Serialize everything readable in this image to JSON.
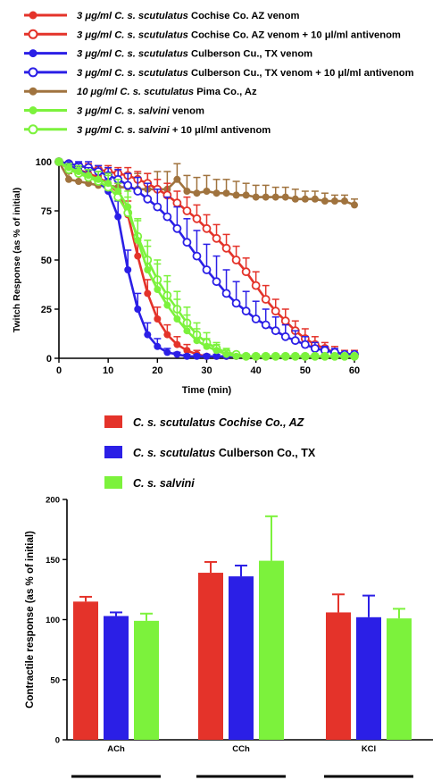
{
  "colors": {
    "cochise": "#e4332a",
    "culberson": "#2b1fe6",
    "salvini": "#7cf23c",
    "pima": "#a0733e",
    "axis": "#000000"
  },
  "chart_data": [
    {
      "type": "line",
      "xlabel": "Time (min)",
      "ylabel": "Twitch Response (as % of initial)",
      "xlim": [
        0,
        60
      ],
      "ylim": [
        0,
        100
      ],
      "xticks": [
        "0",
        "10",
        "20",
        "30",
        "40",
        "50",
        "60"
      ],
      "yticks": [
        "0",
        "25",
        "50",
        "75",
        "100"
      ],
      "legend": [
        {
          "prefix": "3 μg/ml ",
          "species": "C. s. scutulatus",
          "suffix": " Cochise Co. AZ venom",
          "color": "#e4332a",
          "marker": "filled"
        },
        {
          "prefix": "3 μg/ml ",
          "species": "C. s. scutulatus",
          "suffix": " Cochise Co. AZ venom + 10 μl/ml  antivenom",
          "color": "#e4332a",
          "marker": "open"
        },
        {
          "prefix": "3 μg/ml ",
          "species": "C. s. scutulatus",
          "suffix": " Culberson Cu., TX venom",
          "color": "#2b1fe6",
          "marker": "filled"
        },
        {
          "prefix": "3 μg/ml ",
          "species": "C. s. scutulatus",
          "suffix": " Culberson Cu., TX venom  + 10 μl/ml  antivenom",
          "color": "#2b1fe6",
          "marker": "open"
        },
        {
          "prefix": "10 μg/ml ",
          "species": "C. s. scutulatus",
          "suffix": " Pima Co., Az",
          "color": "#a0733e",
          "marker": "filled"
        },
        {
          "prefix": "3 μg/ml ",
          "species": "C. s. salvini",
          "suffix": " venom",
          "color": "#7cf23c",
          "marker": "filled"
        },
        {
          "prefix": "3 μg/ml ",
          "species": "C. s. salvini",
          "suffix": "  + 10 μl/ml  antivenom",
          "color": "#7cf23c",
          "marker": "open"
        }
      ],
      "x": [
        0,
        2,
        4,
        6,
        8,
        10,
        12,
        14,
        16,
        18,
        20,
        22,
        24,
        26,
        28,
        30,
        32,
        34,
        36,
        38,
        40,
        42,
        44,
        46,
        48,
        50,
        52,
        54,
        56,
        58,
        60
      ],
      "series": [
        {
          "color": "#e4332a",
          "marker": "filled",
          "values": [
            100,
            98,
            96,
            94,
            92,
            89,
            84,
            73,
            52,
            33,
            20,
            12,
            7,
            4,
            2,
            1,
            1,
            1,
            1,
            1,
            1,
            1,
            1,
            1,
            1,
            1,
            1,
            1,
            1,
            1,
            1
          ],
          "err": [
            0,
            2,
            2,
            3,
            3,
            4,
            5,
            7,
            8,
            7,
            6,
            5,
            4,
            3,
            2,
            1,
            1,
            1,
            1,
            1,
            1,
            1,
            1,
            1,
            1,
            1,
            1,
            1,
            1,
            1,
            1
          ]
        },
        {
          "color": "#e4332a",
          "marker": "open",
          "values": [
            100,
            99,
            98,
            97,
            96,
            95,
            94,
            93,
            91,
            89,
            86,
            83,
            79,
            75,
            71,
            66,
            61,
            56,
            50,
            44,
            37,
            30,
            24,
            19,
            14,
            10,
            7,
            5,
            3,
            2,
            2
          ],
          "err": [
            0,
            1,
            1,
            2,
            2,
            3,
            3,
            4,
            4,
            5,
            5,
            6,
            6,
            7,
            7,
            7,
            7,
            7,
            7,
            7,
            7,
            7,
            6,
            6,
            5,
            5,
            4,
            3,
            3,
            2,
            2
          ]
        },
        {
          "color": "#2b1fe6",
          "marker": "filled",
          "values": [
            100,
            98,
            96,
            93,
            90,
            85,
            72,
            45,
            25,
            12,
            6,
            3,
            2,
            1,
            1,
            1,
            1,
            1,
            1,
            1,
            1,
            1,
            1,
            1,
            1,
            1,
            1,
            1,
            1,
            1,
            1
          ],
          "err": [
            0,
            2,
            3,
            4,
            5,
            6,
            8,
            10,
            8,
            6,
            4,
            2,
            1,
            1,
            1,
            1,
            1,
            1,
            1,
            1,
            1,
            1,
            1,
            1,
            1,
            1,
            1,
            1,
            1,
            1,
            1
          ]
        },
        {
          "color": "#2b1fe6",
          "marker": "open",
          "values": [
            100,
            99,
            98,
            97,
            95,
            93,
            91,
            88,
            85,
            81,
            77,
            72,
            66,
            59,
            52,
            45,
            39,
            33,
            28,
            24,
            20,
            17,
            14,
            11,
            9,
            7,
            5,
            4,
            3,
            2,
            2
          ],
          "err": [
            0,
            1,
            2,
            3,
            3,
            4,
            5,
            6,
            7,
            8,
            9,
            10,
            11,
            12,
            13,
            13,
            13,
            12,
            11,
            10,
            9,
            8,
            7,
            6,
            5,
            4,
            3,
            2,
            2,
            1,
            1
          ]
        },
        {
          "color": "#a0733e",
          "marker": "filled",
          "values": [
            100,
            91,
            90,
            89,
            88,
            88,
            87,
            87,
            86,
            86,
            86,
            86,
            91,
            85,
            84,
            85,
            84,
            84,
            83,
            83,
            82,
            82,
            82,
            82,
            81,
            81,
            81,
            80,
            80,
            80,
            78
          ],
          "err": [
            0,
            3,
            4,
            5,
            5,
            6,
            7,
            7,
            8,
            8,
            9,
            9,
            8,
            8,
            8,
            8,
            7,
            7,
            7,
            6,
            6,
            6,
            5,
            5,
            5,
            4,
            4,
            4,
            3,
            3,
            3
          ]
        },
        {
          "color": "#7cf23c",
          "marker": "filled",
          "values": [
            100,
            97,
            95,
            93,
            91,
            89,
            85,
            77,
            60,
            45,
            35,
            27,
            20,
            14,
            9,
            6,
            4,
            2,
            1,
            1,
            1,
            1,
            1,
            1,
            1,
            1,
            1,
            1,
            1,
            1,
            1
          ],
          "err": [
            0,
            2,
            3,
            3,
            4,
            5,
            6,
            8,
            10,
            12,
            13,
            12,
            10,
            8,
            6,
            4,
            3,
            2,
            1,
            1,
            1,
            1,
            1,
            1,
            1,
            1,
            1,
            1,
            1,
            1,
            1
          ]
        },
        {
          "color": "#7cf23c",
          "marker": "open",
          "values": [
            100,
            96,
            94,
            92,
            90,
            87,
            82,
            74,
            62,
            50,
            40,
            32,
            25,
            18,
            12,
            8,
            5,
            3,
            2,
            1,
            1,
            1,
            1,
            1,
            1,
            1,
            1,
            1,
            1,
            1,
            1
          ],
          "err": [
            0,
            2,
            3,
            4,
            5,
            6,
            7,
            8,
            9,
            10,
            10,
            10,
            9,
            8,
            6,
            5,
            3,
            2,
            1,
            1,
            1,
            1,
            1,
            1,
            1,
            1,
            1,
            1,
            1,
            1,
            1
          ]
        }
      ]
    },
    {
      "type": "bar",
      "ylabel": "Contractile response (as % of initial)",
      "ylim": [
        0,
        200
      ],
      "yticks": [
        "0",
        "50",
        "100",
        "150",
        "200"
      ],
      "categories": [
        "ACh",
        "CCh",
        "KCl"
      ],
      "legend": [
        {
          "species": "C. s. scutulatus",
          "suffix": " Cochise Co., AZ",
          "suffix_italic": true,
          "color": "#e4332a"
        },
        {
          "species": "C. s. scutulatus",
          "suffix": " Culberson Co., TX",
          "suffix_italic": false,
          "color": "#2b1fe6"
        },
        {
          "species": "C. s. salvini",
          "suffix": "",
          "suffix_italic": false,
          "color": "#7cf23c"
        }
      ],
      "series": [
        {
          "color": "#e4332a",
          "values": [
            115,
            139,
            106
          ],
          "err": [
            4,
            9,
            15
          ]
        },
        {
          "color": "#2b1fe6",
          "values": [
            103,
            136,
            102
          ],
          "err": [
            3,
            9,
            18
          ]
        },
        {
          "color": "#7cf23c",
          "values": [
            99,
            149,
            101
          ],
          "err": [
            6,
            37,
            8
          ]
        }
      ]
    }
  ]
}
